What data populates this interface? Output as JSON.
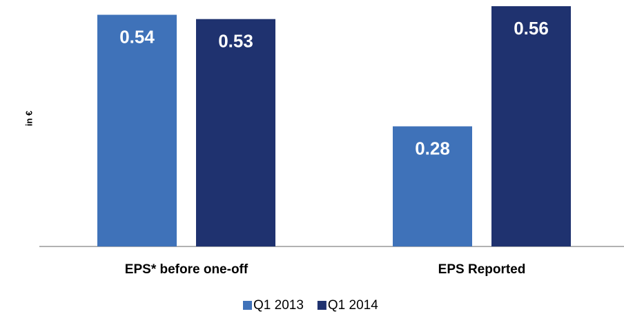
{
  "chart_data": {
    "type": "bar",
    "y_label": "in €",
    "categories": [
      "EPS* before one-off",
      "EPS Reported"
    ],
    "series": [
      {
        "name": "Q1 2013",
        "color": "#3f72b9",
        "values": [
          0.54,
          0.28
        ]
      },
      {
        "name": "Q1 2014",
        "color": "#1f326f",
        "values": [
          0.53,
          0.56
        ]
      }
    ],
    "ylim": [
      0,
      0.56
    ]
  }
}
